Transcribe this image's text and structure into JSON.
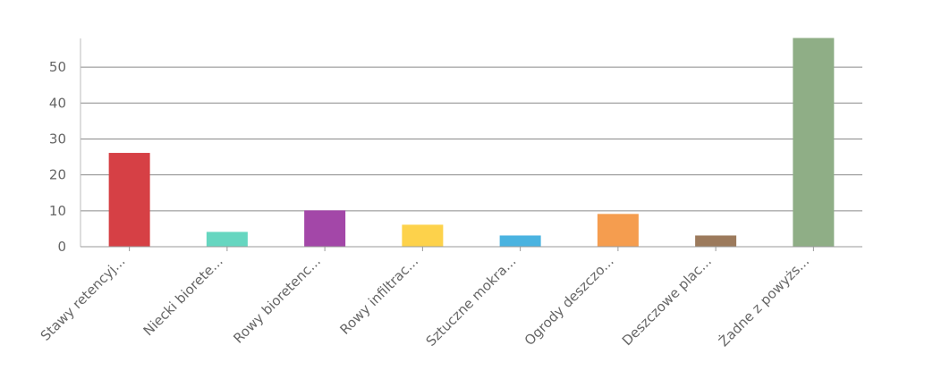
{
  "chart_data": {
    "type": "bar",
    "categories": [
      "Stawy retencyj...",
      "Niecki biorete...",
      "Rowy bioretenc...",
      "Rowy infiltrac...",
      "Sztuczne mokra...",
      "Ogrody deszczo...",
      "Deszczowe plac...",
      "Żadne z powyżs..."
    ],
    "values": [
      26,
      4,
      10,
      6,
      3,
      9,
      3,
      58
    ],
    "colors": [
      "#d64045",
      "#66d6c0",
      "#a347a8",
      "#fdd24b",
      "#4ab3e0",
      "#f59d4f",
      "#9c7a5c",
      "#8fae86"
    ],
    "ylim": [
      0,
      58
    ],
    "yticks": [
      0,
      10,
      20,
      30,
      40,
      50
    ],
    "grid": true,
    "title": "",
    "xlabel": "",
    "ylabel": ""
  }
}
